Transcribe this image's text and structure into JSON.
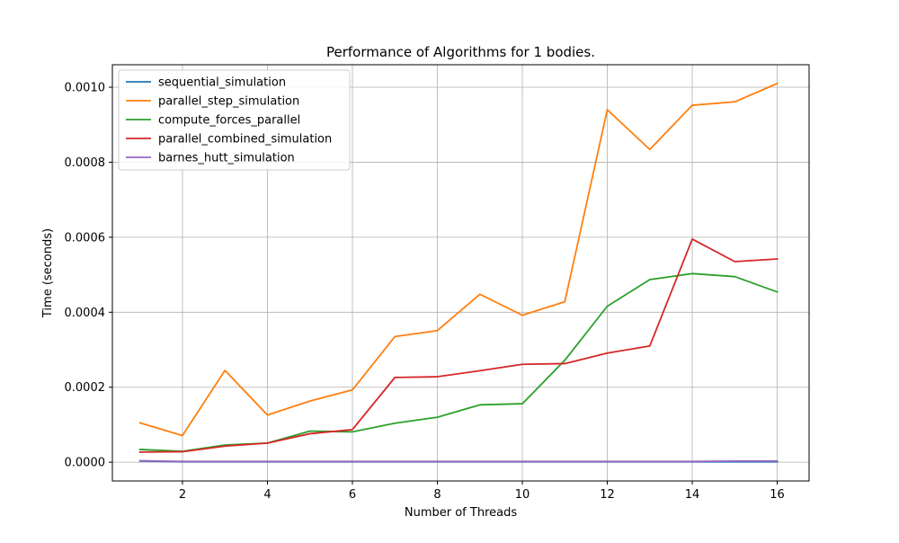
{
  "chart_data": {
    "type": "line",
    "title": "Performance of Algorithms for 1 bodies.",
    "xlabel": "Number of Threads",
    "ylabel": "Time (seconds)",
    "xlim": [
      0.35,
      16.75
    ],
    "ylim": [
      -5e-05,
      0.00106
    ],
    "x_ticks": [
      2,
      4,
      6,
      8,
      10,
      12,
      14,
      16
    ],
    "y_ticks": [
      0.0,
      0.0002,
      0.0004,
      0.0006,
      0.0008,
      0.001
    ],
    "y_tick_labels": [
      "0.0000",
      "0.0002",
      "0.0004",
      "0.0006",
      "0.0008",
      "0.0010"
    ],
    "grid": true,
    "legend_position": "top-left",
    "x": [
      1,
      2,
      3,
      4,
      5,
      6,
      7,
      8,
      9,
      10,
      11,
      12,
      13,
      14,
      15,
      16
    ],
    "series": [
      {
        "name": "sequential_simulation",
        "color": "#1f77b4",
        "values": [
          3e-06,
          1e-06,
          1e-06,
          1e-06,
          1e-06,
          1e-06,
          1e-06,
          1e-06,
          1e-06,
          1e-06,
          1e-06,
          1e-06,
          1e-06,
          1e-06,
          1e-06,
          1e-06
        ]
      },
      {
        "name": "parallel_step_simulation",
        "color": "#ff7f0e",
        "values": [
          0.000105,
          7.1e-05,
          0.000245,
          0.000126,
          0.000163,
          0.000193,
          0.000335,
          0.000351,
          0.000448,
          0.000392,
          0.000428,
          0.00094,
          0.000834,
          0.000952,
          0.000961,
          0.00101
        ]
      },
      {
        "name": "compute_forces_parallel",
        "color": "#2ca02c",
        "values": [
          3.4e-05,
          2.9e-05,
          4.6e-05,
          5.1e-05,
          8.3e-05,
          8.1e-05,
          0.000104,
          0.00012,
          0.000153,
          0.000156,
          0.000272,
          0.000416,
          0.000487,
          0.000503,
          0.000495,
          0.000454
        ]
      },
      {
        "name": "parallel_combined_simulation",
        "color": "#d62728",
        "values": [
          2.7e-05,
          2.8e-05,
          4.3e-05,
          5.1e-05,
          7.6e-05,
          8.7e-05,
          0.000226,
          0.000228,
          0.000244,
          0.000261,
          0.000263,
          0.000291,
          0.00031,
          0.000595,
          0.000535,
          0.000542
        ]
      },
      {
        "name": "barnes_hutt_simulation",
        "color": "#9467bd",
        "values": [
          4e-06,
          2e-06,
          2e-06,
          2e-06,
          2e-06,
          2e-06,
          2e-06,
          2e-06,
          2e-06,
          2e-06,
          2e-06,
          2e-06,
          2e-06,
          2e-06,
          3e-06,
          3e-06
        ]
      }
    ]
  }
}
